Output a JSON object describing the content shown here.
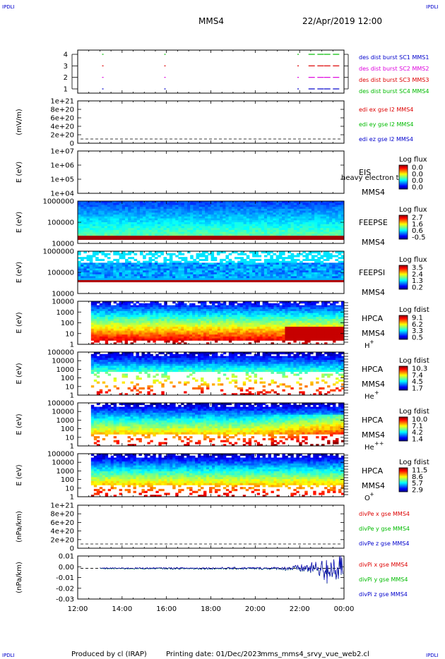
{
  "header": {
    "corner_left_top": "IPDLI",
    "corner_right_top": "IPDLI",
    "corner_left_bottom": "IPDLI",
    "corner_right_bottom": "IPDLI",
    "mission": "MMS4",
    "datetime": "22/Apr/2019 12:00"
  },
  "footer": {
    "produced_by": "Produced by cl (IRAP)",
    "printing_date": "Printing date: 01/Dec/2023",
    "file": "mms_mms4_srvy_vue_web2.cl"
  },
  "colors": {
    "black": "#000000",
    "red": "#dd0000",
    "magenta": "#dd00dd",
    "blue": "#0000cc",
    "green": "#00bb00"
  },
  "chart_data": {
    "type": "stacked-panels",
    "x_axis": {
      "ticks": [
        "12:00",
        "14:00",
        "16:00",
        "18:00",
        "20:00",
        "22:00",
        "00:00"
      ],
      "range_hours": [
        12,
        24
      ]
    },
    "panels": [
      {
        "id": "burst",
        "type": "event",
        "yticks": [
          "4",
          "3",
          "2",
          "1"
        ],
        "legend": [
          {
            "text": "des dist burst SC1 MMS1",
            "color": "#0000cc"
          },
          {
            "text": "des dist burst SC2 MMS2",
            "color": "#dd00dd"
          },
          {
            "text": "des dist burst SC3 MMS3",
            "color": "#dd0000"
          },
          {
            "text": "des dist burst SC4 MMS4",
            "color": "#00bb00"
          }
        ],
        "burst_times_hours": [
          13.1,
          15.9,
          21.9,
          22.4,
          22.8,
          23.1,
          23.5
        ],
        "level_colors": [
          "#0000cc",
          "#dd00dd",
          "#dd0000",
          "#00bb00"
        ]
      },
      {
        "id": "edi-e",
        "type": "line",
        "ylabel": "(mV/m)",
        "yticks": [
          "1e+21",
          "8e+20",
          "6e+20",
          "4e+20",
          "2e+20",
          "0"
        ],
        "legend": [
          {
            "text": "edi ex gse l2 MMS4",
            "color": "#dd0000"
          },
          {
            "text": "edi ey gse l2 MMS4",
            "color": "#00bb00"
          },
          {
            "text": "edi ez gse l2 MMS4",
            "color": "#0000cc"
          }
        ]
      },
      {
        "id": "eis",
        "type": "spectrogram",
        "ylabel": "E (eV)",
        "yticks": [
          "1e+07",
          "1e+06",
          "1e+05",
          "1e+04"
        ],
        "instrument": "EIS",
        "overlay_text": "heavy electron to",
        "sc": "MMS4",
        "cbar_title": "Log flux",
        "cbar_ticks": [
          "0.0",
          "0.0",
          "0.0",
          "0.0"
        ],
        "filled": false
      },
      {
        "id": "feepse",
        "type": "spectrogram",
        "ylabel": "E (eV)",
        "yticks": [
          "1000000",
          "100000",
          "10000"
        ],
        "instrument": "FEEPSE",
        "sc": "MMS4",
        "cbar_title": "Log flux",
        "cbar_ticks": [
          "2.7",
          "1.6",
          "0.6",
          "-0.5"
        ],
        "data_start_hours": 12.0,
        "filled": true
      },
      {
        "id": "feepsi",
        "type": "spectrogram",
        "ylabel": "E (eV)",
        "yticks": [
          "1000000",
          "100000",
          "10000"
        ],
        "instrument": "FEEPSI",
        "sc": "MMS4",
        "cbar_title": "Log flux",
        "cbar_ticks": [
          "3.5",
          "2.4",
          "1.3",
          "0.2"
        ],
        "data_start_hours": 12.0,
        "filled": true
      },
      {
        "id": "hpca-h",
        "type": "spectrogram",
        "ylabel": "E (eV)",
        "yticks": [
          "10000",
          "1000",
          "100",
          "10",
          "1"
        ],
        "instrument": "HPCA",
        "sc": "MMS4",
        "species": "H",
        "species_charge": "+",
        "cbar_title": "Log fdist",
        "cbar_ticks": [
          "9.1",
          "6.2",
          "3.3",
          "0.5"
        ],
        "data_start_hours": 12.6,
        "filled": true
      },
      {
        "id": "hpca-he",
        "type": "spectrogram",
        "ylabel": "E (eV)",
        "yticks": [
          "100000",
          "10000",
          "1000",
          "100",
          "10",
          "1"
        ],
        "instrument": "HPCA",
        "sc": "MMS4",
        "species": "He",
        "species_charge": "+",
        "cbar_title": "Log fdist",
        "cbar_ticks": [
          "10.3",
          "7.4",
          "4.5",
          "1.7"
        ],
        "data_start_hours": 12.6,
        "filled": true
      },
      {
        "id": "hpca-hepp",
        "type": "spectrogram",
        "ylabel": "E (eV)",
        "yticks": [
          "100000",
          "10000",
          "1000",
          "100",
          "10",
          "1"
        ],
        "instrument": "HPCA",
        "sc": "MMS4",
        "species": "He",
        "species_charge": "++",
        "cbar_title": "Log fdist",
        "cbar_ticks": [
          "10.0",
          "7.1",
          "4.2",
          "1.4"
        ],
        "data_start_hours": 12.6,
        "filled": true
      },
      {
        "id": "hpca-o",
        "type": "spectrogram",
        "ylabel": "E (eV)",
        "yticks": [
          "100000",
          "10000",
          "1000",
          "100",
          "10",
          "1"
        ],
        "instrument": "HPCA",
        "sc": "MMS4",
        "species": "O",
        "species_charge": "+",
        "cbar_title": "Log fdist",
        "cbar_ticks": [
          "11.5",
          "8.6",
          "5.7",
          "2.9"
        ],
        "data_start_hours": 12.6,
        "filled": true
      },
      {
        "id": "divpe",
        "type": "line",
        "ylabel": "(nPa/km)",
        "yticks": [
          "1e+21",
          "8e+20",
          "6e+20",
          "4e+20",
          "2e+20",
          "0"
        ],
        "legend": [
          {
            "text": "divPe x gse MMS4",
            "color": "#dd0000"
          },
          {
            "text": "divPe y gse MMS4",
            "color": "#00bb00"
          },
          {
            "text": "divPe z gse MMS4",
            "color": "#0000cc"
          }
        ]
      },
      {
        "id": "divpi",
        "type": "line",
        "ylabel": "(nPa/km)",
        "yticks": [
          "0.01",
          "0.00",
          "-0.01",
          "-0.02",
          "-0.03"
        ],
        "yrange": [
          -0.03,
          0.012
        ],
        "legend": [
          {
            "text": "divPi x gse MMS4",
            "color": "#dd0000"
          },
          {
            "text": "divPi y gse MMS4",
            "color": "#00bb00"
          },
          {
            "text": "divPi z gse MMS4",
            "color": "#0000cc"
          }
        ],
        "data_start_hours": 13.0
      }
    ]
  }
}
